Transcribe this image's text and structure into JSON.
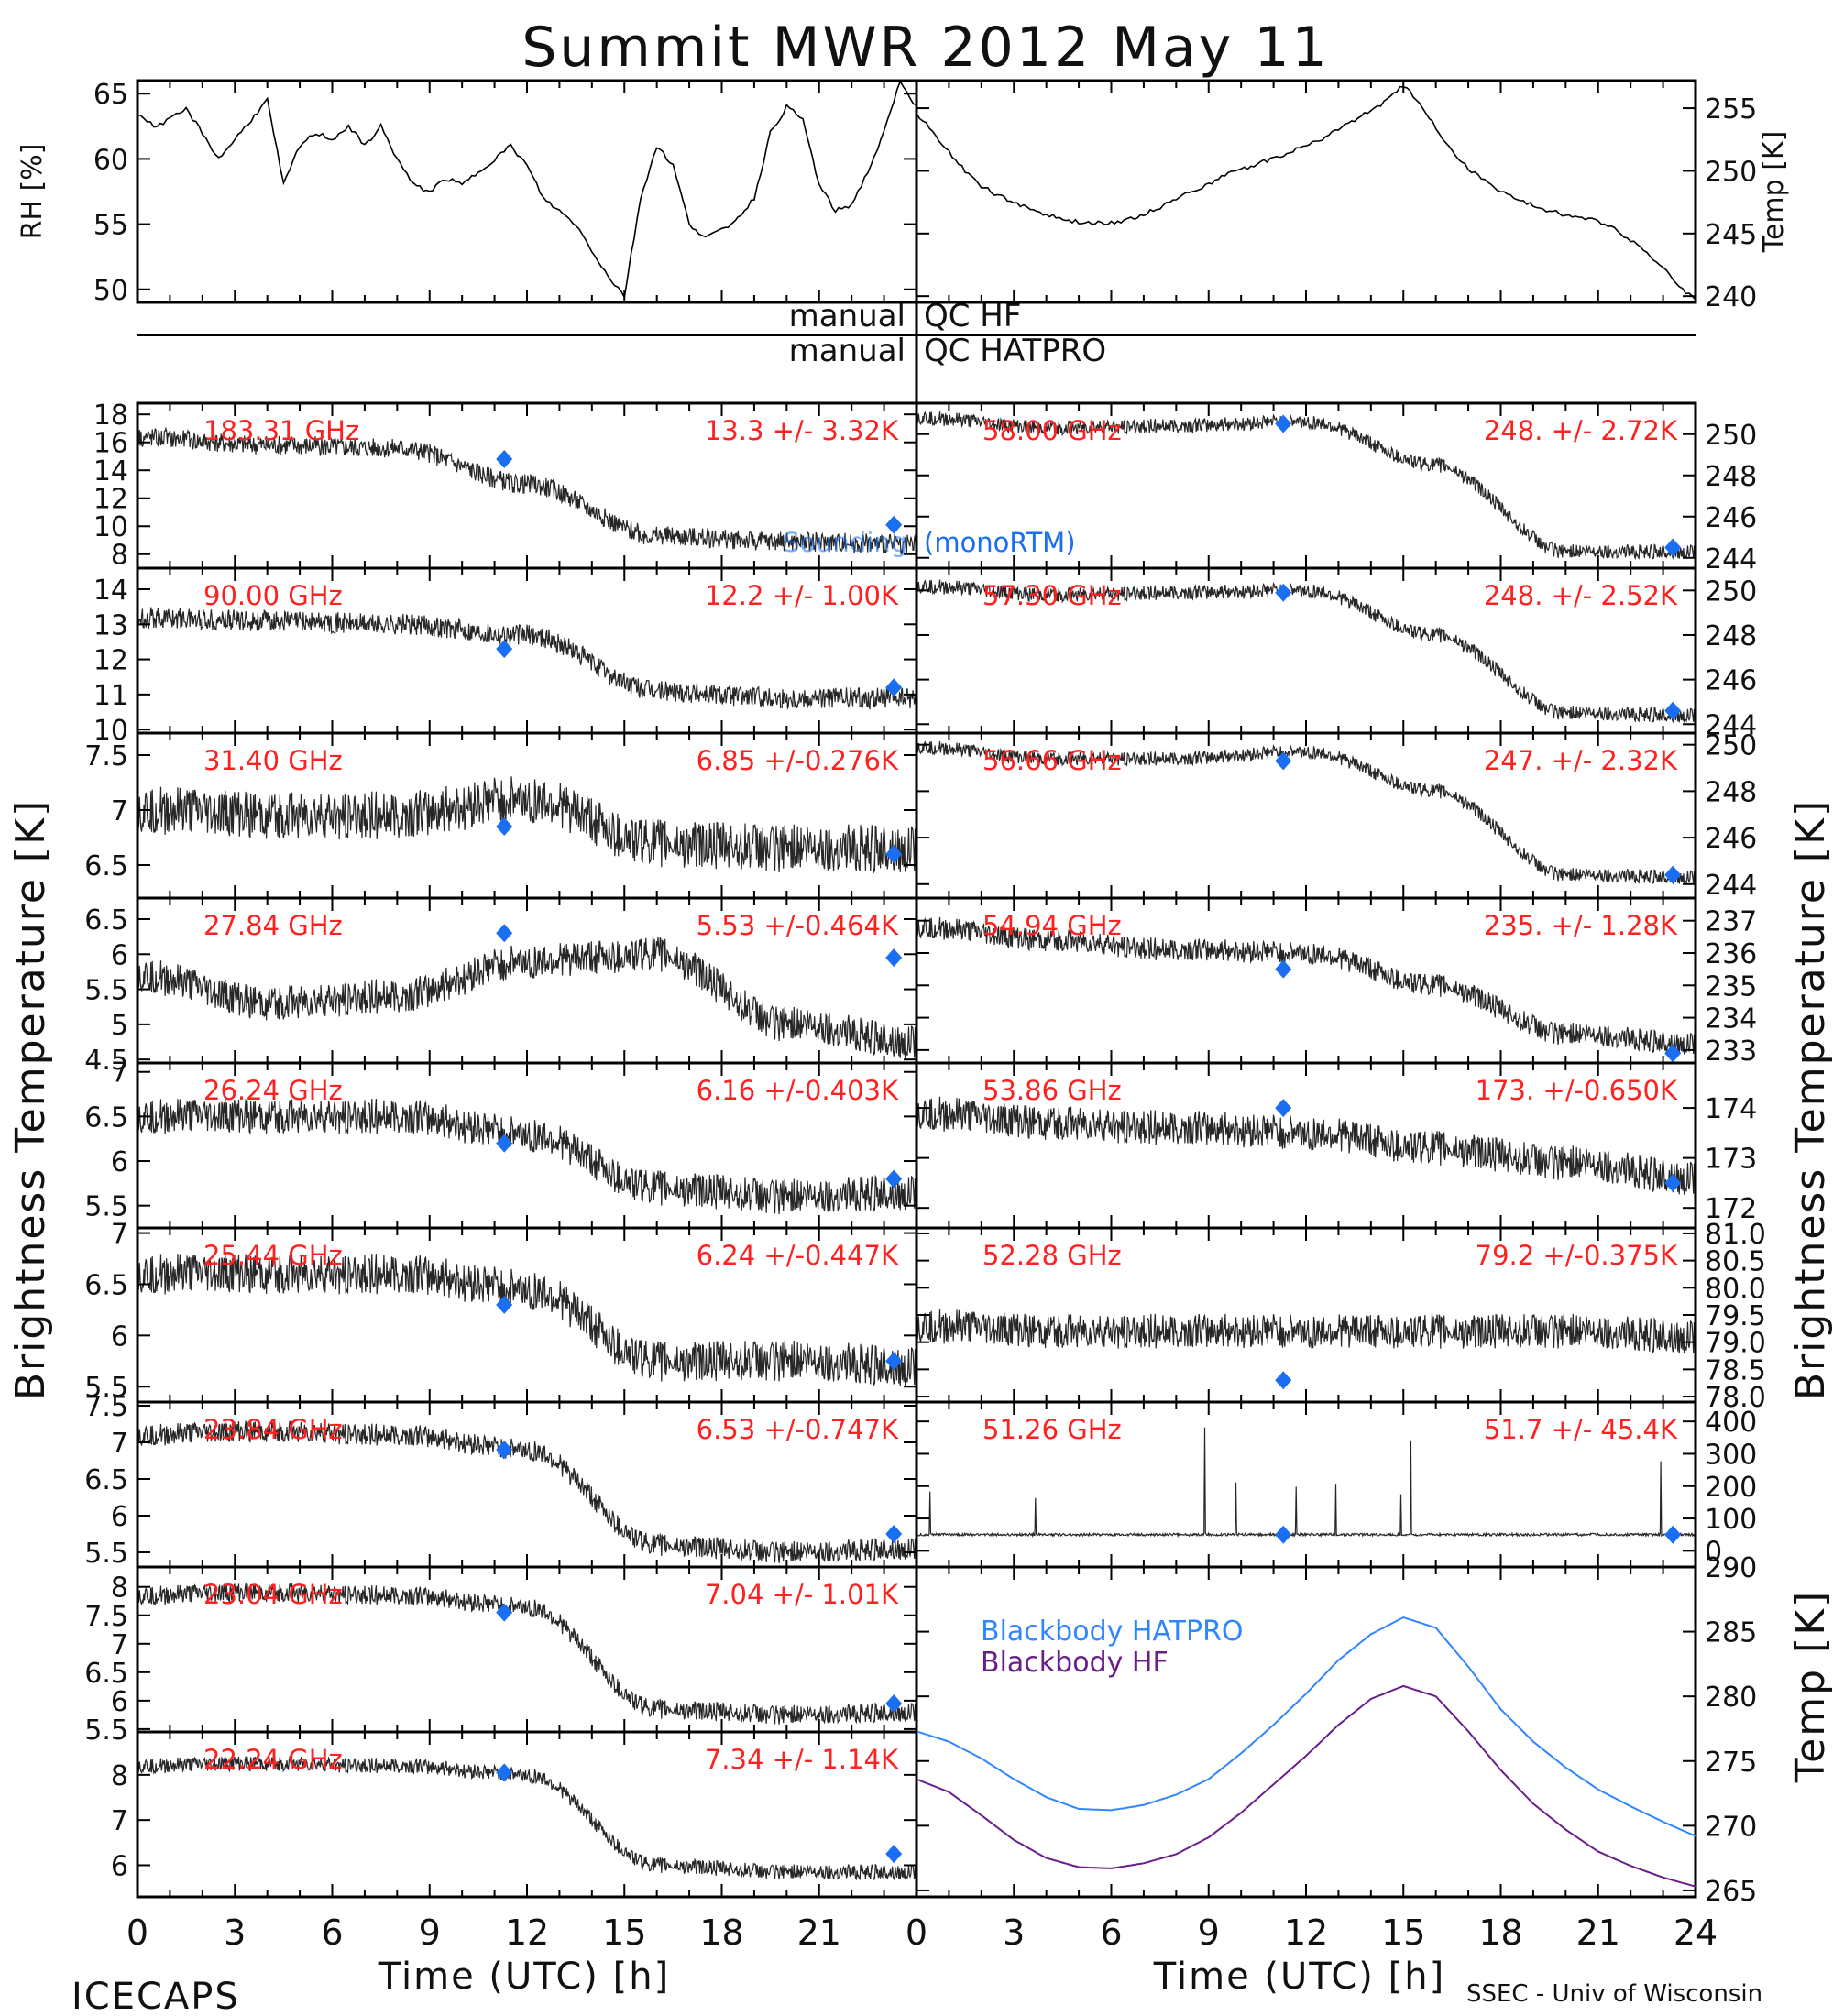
{
  "figure": {
    "title": "Summit MWR 2012 May 11",
    "footer_left": "ICECAPS",
    "footer_right": "SSEC - Univ of Wisconsin",
    "xlabel_left": "Time (UTC) [h]",
    "xlabel_right": "Time (UTC) [h]",
    "ylabel_left": "Brightness Temperature [K]",
    "ylabel_right": "Brightness Temperature [K]",
    "ylabel_bottom_right": "Temp [K]",
    "qc_left_1": "manual",
    "qc_right_1": "QC HF",
    "qc_left_2": "manual",
    "qc_right_2": "QC HATPRO",
    "model_label": "(monoRTM)",
    "model_label_faint": "Sounding",
    "colors": {
      "data": "#000000",
      "annotation": "#ff2020",
      "model": "#1a6ef2",
      "hatpro": "#2f86ff",
      "hf": "#6a1e8c"
    }
  },
  "chart_data": [
    {
      "id": "rh",
      "type": "line",
      "ylabel": "RH [%]",
      "ylim": [
        49,
        66
      ],
      "yticks": [
        50,
        55,
        60,
        65
      ],
      "xlim": [
        0,
        24
      ],
      "xtick_labels": [
        "0",
        "3",
        "6",
        "9",
        "12",
        "15",
        "18",
        "21"
      ],
      "x": [
        0,
        0.5,
        1,
        1.5,
        2,
        2.5,
        3,
        3.5,
        4,
        4.5,
        5,
        5.5,
        6,
        6.5,
        7,
        7.5,
        8,
        8.5,
        9,
        9.5,
        10,
        10.5,
        11,
        11.5,
        12,
        12.5,
        13,
        13.5,
        14,
        14.5,
        15,
        15.5,
        16,
        16.5,
        17,
        17.5,
        18,
        18.5,
        19,
        19.5,
        20,
        20.5,
        21,
        21.5,
        22,
        22.5,
        23,
        23.5,
        24
      ],
      "y": [
        63.5,
        62.5,
        63,
        63.8,
        62,
        60,
        61.5,
        63,
        64.5,
        58,
        61,
        62,
        61.5,
        62.5,
        61,
        62.5,
        60,
        58,
        57.5,
        58.5,
        58,
        59,
        60,
        61,
        59.5,
        57,
        56,
        55,
        53,
        51,
        49.5,
        57,
        61,
        59.5,
        55,
        54,
        54.5,
        55.5,
        57,
        62,
        64,
        63,
        58,
        56,
        56.5,
        59,
        62,
        66,
        64
      ]
    },
    {
      "id": "temp",
      "type": "line",
      "ylabel": "Temp [K]",
      "ylim": [
        239.5,
        257.2
      ],
      "yticks": [
        240,
        245,
        250,
        255
      ],
      "xlim": [
        0,
        24
      ],
      "x": [
        0,
        0.5,
        1,
        1.5,
        2,
        2.5,
        3,
        3.5,
        4,
        4.5,
        5,
        5.5,
        6,
        6.5,
        7,
        7.5,
        8,
        8.5,
        9,
        9.5,
        10,
        10.5,
        11,
        11.5,
        12,
        12.5,
        13,
        13.5,
        14,
        14.5,
        15,
        15.5,
        16,
        16.5,
        17,
        17.5,
        18,
        18.5,
        19,
        19.5,
        20,
        20.5,
        21,
        21.5,
        22,
        22.5,
        23,
        23.5,
        24
      ],
      "y": [
        254.5,
        253.2,
        251.5,
        250,
        248.8,
        248,
        247.5,
        247,
        246.5,
        246.1,
        245.9,
        245.8,
        245.9,
        246.1,
        246.5,
        247.1,
        247.8,
        248.4,
        249,
        249.6,
        250.1,
        250.6,
        251,
        251.5,
        252,
        252.6,
        253.3,
        254.1,
        254.8,
        255.6,
        256.8,
        255.5,
        253.5,
        251.5,
        250.2,
        249.2,
        248.4,
        247.7,
        247.2,
        246.8,
        246.5,
        246.2,
        246,
        245.4,
        244.5,
        243.5,
        242.2,
        240.8,
        239.7
      ]
    },
    {
      "id": "ch_183",
      "type": "scatter",
      "side": "left",
      "label": "183.31 GHz",
      "annotation": "13.3 +/- 3.32K",
      "ylim": [
        7,
        18.8
      ],
      "yticks": [
        8,
        10,
        12,
        14,
        16,
        18
      ],
      "levels": [
        16.4,
        15.8,
        15.6,
        13,
        9.3,
        8.9,
        8.7
      ],
      "noise": 0.7,
      "model": [
        {
          "x": 11.3,
          "y": 14.8
        },
        {
          "x": 23.3,
          "y": 10.1
        }
      ]
    },
    {
      "id": "ch_90",
      "type": "scatter",
      "side": "left",
      "label": "90.00 GHz",
      "annotation": "12.2 +/- 1.00K",
      "ylim": [
        9.9,
        14.6
      ],
      "yticks": [
        10,
        11,
        12,
        13,
        14
      ],
      "levels": [
        13.2,
        13.1,
        13.0,
        12.7,
        11.1,
        10.9,
        10.9
      ],
      "noise": 0.3,
      "model": [
        {
          "x": 11.3,
          "y": 12.3
        },
        {
          "x": 23.3,
          "y": 11.2
        }
      ]
    },
    {
      "id": "ch_31_40",
      "type": "scatter",
      "side": "left",
      "label": "31.40 GHz",
      "annotation": "6.85 +/-0.276K",
      "ylim": [
        6.2,
        7.7
      ],
      "yticks": [
        6.5,
        7.0,
        7.5
      ],
      "levels": [
        7.0,
        6.95,
        6.95,
        7.1,
        6.7,
        6.65,
        6.65
      ],
      "noise": 0.22,
      "model": [
        {
          "x": 11.3,
          "y": 6.85
        },
        {
          "x": 23.3,
          "y": 6.6
        }
      ]
    },
    {
      "id": "ch_27_84",
      "type": "scatter",
      "side": "left",
      "label": "27.84 GHz",
      "annotation": "5.53 +/-0.464K",
      "ylim": [
        4.45,
        6.8
      ],
      "yticks": [
        4.5,
        5.0,
        5.5,
        6.0,
        6.5
      ],
      "levels": [
        5.7,
        5.3,
        5.4,
        5.9,
        6.0,
        5.0,
        4.75
      ],
      "noise": 0.25,
      "model": [
        {
          "x": 11.3,
          "y": 6.3
        },
        {
          "x": 23.3,
          "y": 5.95
        }
      ]
    },
    {
      "id": "ch_26_24",
      "type": "scatter",
      "side": "left",
      "label": "26.24 GHz",
      "annotation": "6.16 +/-0.403K",
      "ylim": [
        5.25,
        7.1
      ],
      "yticks": [
        5.5,
        6.0,
        6.5,
        7.0
      ],
      "levels": [
        6.5,
        6.5,
        6.5,
        6.3,
        5.7,
        5.6,
        5.65
      ],
      "noise": 0.2,
      "model": [
        {
          "x": 11.3,
          "y": 6.2
        },
        {
          "x": 23.3,
          "y": 5.8
        }
      ]
    },
    {
      "id": "ch_25_44",
      "type": "scatter",
      "side": "left",
      "label": "25.44 GHz",
      "annotation": "6.24 +/-0.447K",
      "ylim": [
        5.35,
        7.05
      ],
      "yticks": [
        5.5,
        6.0,
        6.5,
        7.0
      ],
      "levels": [
        6.6,
        6.6,
        6.6,
        6.45,
        5.75,
        5.75,
        5.7
      ],
      "noise": 0.2,
      "model": [
        {
          "x": 11.3,
          "y": 6.3
        },
        {
          "x": 23.3,
          "y": 5.75
        }
      ]
    },
    {
      "id": "ch_23_84",
      "type": "scatter",
      "side": "left",
      "label": "23.84 GHz",
      "annotation": "6.53 +/-0.747K",
      "ylim": [
        5.3,
        7.55
      ],
      "yticks": [
        5.5,
        6.0,
        6.5,
        7.0,
        7.5
      ],
      "levels": [
        7.1,
        7.15,
        7.1,
        6.9,
        5.6,
        5.5,
        5.55
      ],
      "noise": 0.15,
      "model": [
        {
          "x": 11.3,
          "y": 6.9
        },
        {
          "x": 23.3,
          "y": 5.75
        }
      ]
    },
    {
      "id": "ch_23_04",
      "type": "scatter",
      "side": "left",
      "label": "23.04 GHz",
      "annotation": "7.04 +/- 1.01K",
      "ylim": [
        5.45,
        8.35
      ],
      "yticks": [
        5.5,
        6.0,
        6.5,
        7.0,
        7.5,
        8.0
      ],
      "levels": [
        7.85,
        7.9,
        7.85,
        7.65,
        5.85,
        5.75,
        5.8
      ],
      "noise": 0.17,
      "model": [
        {
          "x": 11.3,
          "y": 7.55
        },
        {
          "x": 23.3,
          "y": 5.95
        }
      ]
    },
    {
      "id": "ch_22_24",
      "type": "scatter",
      "side": "left",
      "label": "22.24 GHz",
      "annotation": "7.34 +/- 1.14K",
      "ylim": [
        5.3,
        8.95
      ],
      "yticks": [
        6,
        7,
        8
      ],
      "levels": [
        8.2,
        8.25,
        8.2,
        8.0,
        6.0,
        5.85,
        5.85
      ],
      "noise": 0.17,
      "model": [
        {
          "x": 11.3,
          "y": 8.05
        },
        {
          "x": 23.3,
          "y": 6.25
        }
      ]
    },
    {
      "id": "ch_58_00",
      "type": "scatter",
      "side": "right",
      "label": "58.00 GHz",
      "annotation": "248. +/- 2.72K",
      "ylim": [
        243.5,
        251.5
      ],
      "yticks": [
        244,
        246,
        248,
        250
      ],
      "levels": [
        250.8,
        250.3,
        250.4,
        250.6,
        248.5,
        244.3,
        244.3
      ],
      "noise": 0.35,
      "model": [
        {
          "x": 11.3,
          "y": 250.5
        },
        {
          "x": 23.3,
          "y": 244.5
        }
      ]
    },
    {
      "id": "ch_57_30",
      "type": "scatter",
      "side": "right",
      "label": "57.30 GHz",
      "annotation": "248. +/- 2.52K",
      "ylim": [
        243.6,
        251
      ],
      "yticks": [
        244,
        246,
        248,
        250
      ],
      "levels": [
        250.2,
        249.8,
        249.9,
        250,
        248,
        244.5,
        244.4
      ],
      "noise": 0.33,
      "model": [
        {
          "x": 11.3,
          "y": 249.9
        },
        {
          "x": 23.3,
          "y": 244.6
        }
      ]
    },
    {
      "id": "ch_56_66",
      "type": "scatter",
      "side": "right",
      "label": "56.66 GHz",
      "annotation": "247. +/- 2.32K",
      "ylim": [
        243.4,
        250.5
      ],
      "yticks": [
        244,
        246,
        248,
        250
      ],
      "levels": [
        249.9,
        249.4,
        249.4,
        249.7,
        248,
        244.4,
        244.3
      ],
      "noise": 0.3,
      "model": [
        {
          "x": 11.3,
          "y": 249.3
        },
        {
          "x": 23.3,
          "y": 244.4
        }
      ]
    },
    {
      "id": "ch_54_94",
      "type": "scatter",
      "side": "right",
      "label": "54.94 GHz",
      "annotation": "235. +/- 1.28K",
      "ylim": [
        232.6,
        237.7
      ],
      "yticks": [
        233,
        234,
        235,
        236,
        237
      ],
      "levels": [
        236.8,
        236.4,
        236.1,
        236,
        235,
        233.5,
        233.2
      ],
      "noise": 0.35,
      "model": [
        {
          "x": 11.3,
          "y": 235.5
        },
        {
          "x": 23.3,
          "y": 232.9
        }
      ]
    },
    {
      "id": "ch_53_86",
      "type": "scatter",
      "side": "right",
      "label": "53.86 GHz",
      "annotation": "173. +/-0.650K",
      "ylim": [
        171.6,
        174.9
      ],
      "yticks": [
        172,
        173,
        174
      ],
      "levels": [
        173.9,
        173.7,
        173.6,
        173.5,
        173.2,
        172.9,
        172.6
      ],
      "noise": 0.35,
      "model": [
        {
          "x": 11.3,
          "y": 174.0
        },
        {
          "x": 23.3,
          "y": 172.5
        }
      ]
    },
    {
      "id": "ch_52_28",
      "type": "scatter",
      "side": "right",
      "label": "52.28 GHz",
      "annotation": "79.2 +/-0.375K",
      "ylim": [
        77.9,
        81.1
      ],
      "yticks": [
        78.0,
        78.5,
        79.0,
        79.5,
        80.0,
        80.5,
        81.0
      ],
      "ytick_labels": [
        "78.0",
        "78.5",
        "79.0",
        "79.5",
        "80.0",
        "80.5",
        "81.0"
      ],
      "levels": [
        79.3,
        79.2,
        79.2,
        79.2,
        79.2,
        79.2,
        79.1
      ],
      "noise": 0.32,
      "model": [
        {
          "x": 11.3,
          "y": 78.3
        }
      ]
    },
    {
      "id": "ch_51_26",
      "type": "scatter",
      "side": "right",
      "label": "51.26 GHz",
      "annotation": "51.7 +/- 45.4K",
      "ylim": [
        -50,
        460
      ],
      "yticks": [
        0,
        100,
        200,
        300,
        400
      ],
      "levels": [
        50,
        50,
        50,
        50,
        50,
        50,
        50
      ],
      "noise": 4,
      "model": [
        {
          "x": 11.3,
          "y": 50
        },
        {
          "x": 23.3,
          "y": 50
        }
      ]
    },
    {
      "id": "blackbody",
      "type": "line",
      "side": "right",
      "ylabel": "Temp [K]",
      "ylim": [
        264.5,
        290
      ],
      "yticks": [
        265,
        270,
        275,
        280,
        285,
        290
      ],
      "xlim": [
        0,
        24
      ],
      "xtick_labels": [
        "0",
        "3",
        "6",
        "9",
        "12",
        "15",
        "18",
        "21",
        "24"
      ],
      "x": [
        0,
        1,
        2,
        3,
        4,
        5,
        6,
        7,
        8,
        9,
        10,
        11,
        12,
        13,
        14,
        15,
        16,
        17,
        18,
        19,
        20,
        21,
        22,
        23,
        24
      ],
      "series": [
        {
          "name": "Blackbody HATPRO",
          "color": "#2f86ff",
          "values": [
            277.3,
            276.5,
            275.2,
            273.6,
            272.2,
            271.3,
            271.2,
            271.6,
            272.4,
            273.6,
            275.6,
            277.8,
            280.2,
            282.8,
            284.8,
            286.1,
            285.3,
            282.3,
            279,
            276.5,
            274.5,
            272.8,
            271.5,
            270.3,
            269.2
          ]
        },
        {
          "name": "Blackbody HF",
          "color": "#6a1e8c",
          "values": [
            273.6,
            272.6,
            270.8,
            268.9,
            267.5,
            266.8,
            266.7,
            267.1,
            267.8,
            269.1,
            271,
            273.2,
            275.4,
            277.8,
            279.8,
            280.8,
            280,
            277.3,
            274.3,
            271.7,
            269.7,
            268,
            266.9,
            266,
            265.3
          ]
        }
      ]
    }
  ]
}
